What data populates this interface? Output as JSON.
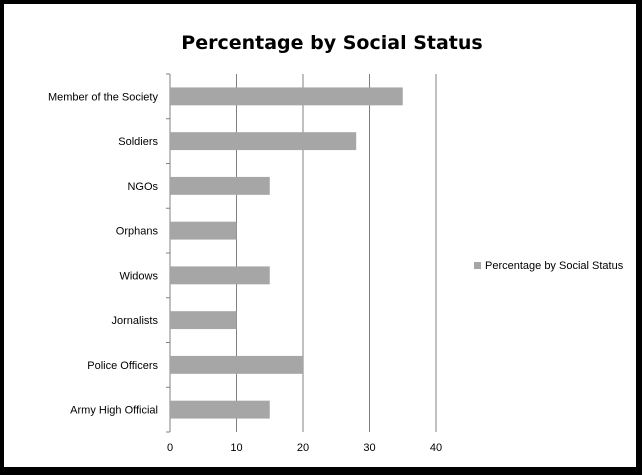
{
  "chart_data": {
    "type": "bar",
    "orientation": "horizontal",
    "title": "Percentage by Social Status",
    "xlabel": "",
    "ylabel": "",
    "categories": [
      "Member of the Society",
      "Soldiers",
      "NGOs",
      "Orphans",
      "Widows",
      "Jornalists",
      "Police Officers",
      "Army High Official"
    ],
    "series": [
      {
        "name": "Percentage by Social Status",
        "values": [
          35,
          28,
          15,
          10,
          15,
          10,
          20,
          15
        ]
      }
    ],
    "xlim": [
      0,
      40
    ],
    "xticks": [
      0,
      10,
      20,
      30,
      40
    ],
    "grid": "vertical major gridlines",
    "legend": "right",
    "colors": {
      "bar": "#a6a6a6",
      "grid": "#808080",
      "axis": "#808080",
      "text": "#000000",
      "frame": "#000000",
      "background": "#ffffff"
    }
  }
}
